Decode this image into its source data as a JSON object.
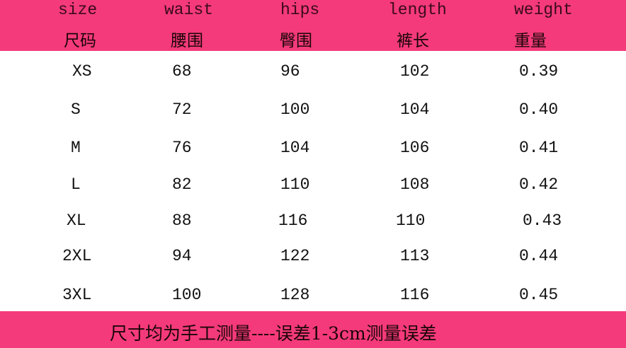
{
  "accent_color": "#f43a7a",
  "header": [
    {
      "en": "size",
      "cn": "尺码"
    },
    {
      "en": "waist",
      "cn": "腰围"
    },
    {
      "en": "hips",
      "cn": "臀围"
    },
    {
      "en": "length",
      "cn": "裤长"
    },
    {
      "en": "weight",
      "cn": "重量"
    }
  ],
  "rows": [
    [
      "XS",
      "68",
      "96",
      "102",
      "0.39"
    ],
    [
      "S",
      "72",
      "100",
      "104",
      "0.40"
    ],
    [
      "M",
      "76",
      "104",
      "106",
      "0.41"
    ],
    [
      "L",
      "82",
      "110",
      "108",
      "0.42"
    ],
    [
      "XL",
      "88",
      "116",
      "110",
      "0.43"
    ],
    [
      "2XL",
      "94",
      "122",
      "113",
      "0.44"
    ],
    [
      "3XL",
      "100",
      "128",
      "116",
      "0.45"
    ]
  ],
  "footer_note": "尺寸均为手工测量----误差1-3cm测量误差"
}
